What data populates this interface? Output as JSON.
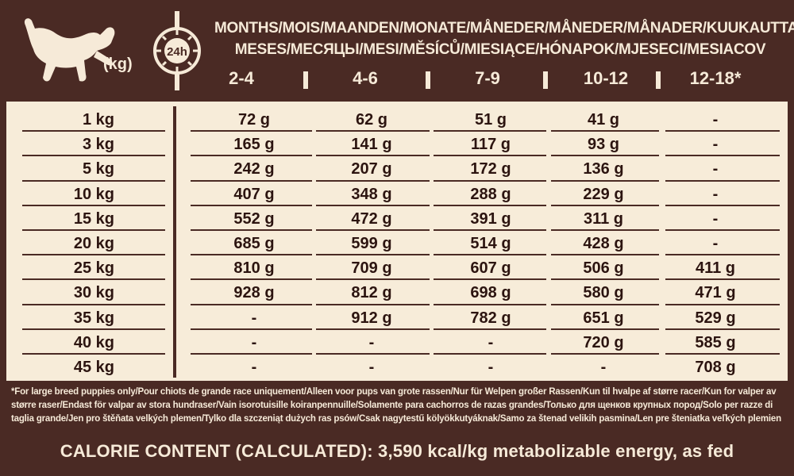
{
  "header": {
    "kg_label": "(kg)",
    "clock_label": "24h",
    "months_line1": "MONTHS/MOIS/MAANDEN/MONATE/MÅNEDER/MÅNEDER/MÅNADER/KUUKAUTTA/",
    "months_line2": "MESES/МЕСЯЦЫ/MESI/MĚSÍCŮ/MIESIĄCE/HÓNAPOK/MJESECI/MESIACOV",
    "ages": [
      "2-4",
      "4-6",
      "7-9",
      "10-12",
      "12-18*"
    ]
  },
  "table": {
    "rows": [
      {
        "weight": "1 kg",
        "values": [
          "72 g",
          "62 g",
          "51 g",
          "41 g",
          "-"
        ]
      },
      {
        "weight": "3 kg",
        "values": [
          "165 g",
          "141 g",
          "117 g",
          "93 g",
          "-"
        ]
      },
      {
        "weight": "5 kg",
        "values": [
          "242 g",
          "207 g",
          "172 g",
          "136 g",
          "-"
        ]
      },
      {
        "weight": "10 kg",
        "values": [
          "407 g",
          "348 g",
          "288 g",
          "229 g",
          "-"
        ]
      },
      {
        "weight": "15 kg",
        "values": [
          "552 g",
          "472 g",
          "391 g",
          "311 g",
          "-"
        ]
      },
      {
        "weight": "20 kg",
        "values": [
          "685 g",
          "599 g",
          "514 g",
          "428 g",
          "-"
        ]
      },
      {
        "weight": "25 kg",
        "values": [
          "810 g",
          "709 g",
          "607 g",
          "506 g",
          "411 g"
        ]
      },
      {
        "weight": "30 kg",
        "values": [
          "928 g",
          "812 g",
          "698 g",
          "580 g",
          "471 g"
        ]
      },
      {
        "weight": "35 kg",
        "values": [
          "-",
          "912 g",
          "782 g",
          "651 g",
          "529 g"
        ]
      },
      {
        "weight": "40 kg",
        "values": [
          "-",
          "-",
          "-",
          "720 g",
          "585 g"
        ]
      },
      {
        "weight": "45 kg",
        "values": [
          "-",
          "-",
          "-",
          "-",
          "708 g"
        ]
      }
    ]
  },
  "footnote": {
    "line1": "*For large breed puppies only/Pour chiots de grande race uniquement/Alleen voor pups van grote rassen/Nur für Welpen großer Rassen/Kun til hvalpe af større racer/Kun for valper av",
    "line2": "større raser/Endast för valpar av stora hundraser/Vain isorotuisille koiranpennuille/Solamente para cachorros de razas grandes/Только для щенков крупных пород/Solo per razze di",
    "line3": "taglia grande/Jen pro štěňata velkých plemen/Tylko dla szczeniąt dużych ras psów/Csak nagytestű kölyökkutyáknak/Samo za štenad velikih pasmina/Len pre šteniatka veľkých plemien"
  },
  "calorie": {
    "text": "CALORIE CONTENT (CALCULATED): 3,590 kcal/kg metabolizable energy, as fed"
  },
  "colors": {
    "dark_brown": "#4a2a24",
    "cream": "#f7ecd9",
    "text_dark": "#2c1410"
  }
}
